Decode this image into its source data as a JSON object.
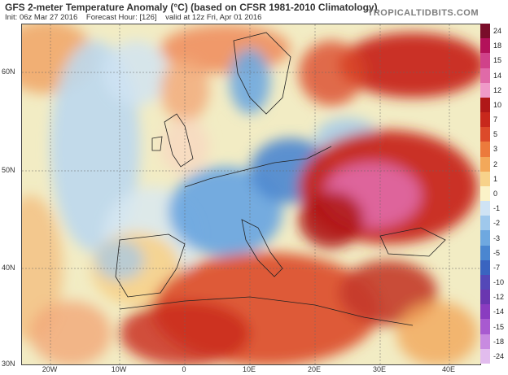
{
  "header": {
    "title": "GFS 2-meter Temperature Anomaly (°C) (based on CFSR 1981-2010 Climatology)",
    "init": "Init: 06z Mar 27 2016",
    "forecast_hour": "Forecast Hour: [126]",
    "valid": "valid at 12z Fri, Apr 01 2016",
    "brand": "TROPICALTIDBITS.COM"
  },
  "map": {
    "lat_labels": [
      "60N",
      "50N",
      "40N",
      "30N"
    ],
    "lon_labels": [
      "20W",
      "10W",
      "0",
      "10E",
      "20E",
      "30E",
      "40E"
    ],
    "ocean_color": "#f4f0c8",
    "cold_color": "#4a90d0",
    "warm_color": "#c43a2a",
    "hot_color": "#d35cc8"
  },
  "legend": {
    "levels": [
      "24",
      "18",
      "15",
      "14",
      "12",
      "10",
      "7",
      "5",
      "3",
      "2",
      "1",
      "0",
      "-1",
      "-2",
      "-3",
      "-5",
      "-7",
      "-10",
      "-12",
      "-14",
      "-15",
      "-18",
      "-24"
    ],
    "colors": [
      "#7a0d2a",
      "#b3125a",
      "#d0428a",
      "#e06aa8",
      "#ef9ac8",
      "#b01818",
      "#c8281c",
      "#dc4a2a",
      "#ec7a3c",
      "#f3a85a",
      "#f7d28a",
      "#fbf2c8",
      "#cfe3f4",
      "#9fc8ec",
      "#6ea8e0",
      "#4a86d0",
      "#3a64c0",
      "#5448b8",
      "#6a36b0",
      "#8a3cc0",
      "#a85ad0",
      "#c88ae0",
      "#e2bcee"
    ]
  }
}
